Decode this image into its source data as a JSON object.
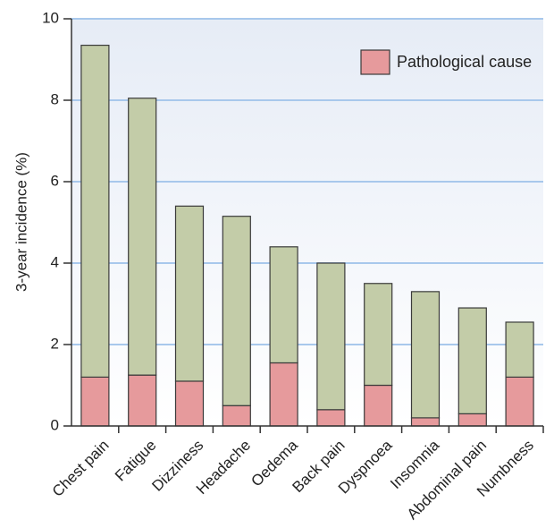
{
  "chart_data": {
    "type": "bar",
    "stacked": true,
    "ylabel": "3-year incidence (%)",
    "xlabel": "",
    "ylim": [
      0,
      10
    ],
    "yticks": [
      0,
      2,
      4,
      6,
      8,
      10
    ],
    "grid": true,
    "legend_position": "top-right",
    "categories": [
      "Chest pain",
      "Fatigue",
      "Dizziness",
      "Headache",
      "Oedema",
      "Back pain",
      "Dyspnoea",
      "Insomnia",
      "Abdominal pain",
      "Numbness"
    ],
    "series": [
      {
        "name": "Pathological cause",
        "color": "#e69a9c",
        "values": [
          1.2,
          1.25,
          1.1,
          0.5,
          1.55,
          0.4,
          1.0,
          0.2,
          0.3,
          1.2
        ]
      },
      {
        "name": "",
        "color": "#c3cca8",
        "values": [
          8.15,
          6.8,
          4.3,
          4.65,
          2.85,
          3.6,
          2.5,
          3.1,
          2.6,
          1.35
        ]
      }
    ],
    "legend": [
      {
        "label": "Pathological cause",
        "color": "#e69a9c"
      }
    ],
    "colors": {
      "grid": "#a8c8ec",
      "background_top": "#e6ecf6",
      "background_bottom": "#ffffff",
      "bar_stroke": "#3a3a3a"
    }
  }
}
